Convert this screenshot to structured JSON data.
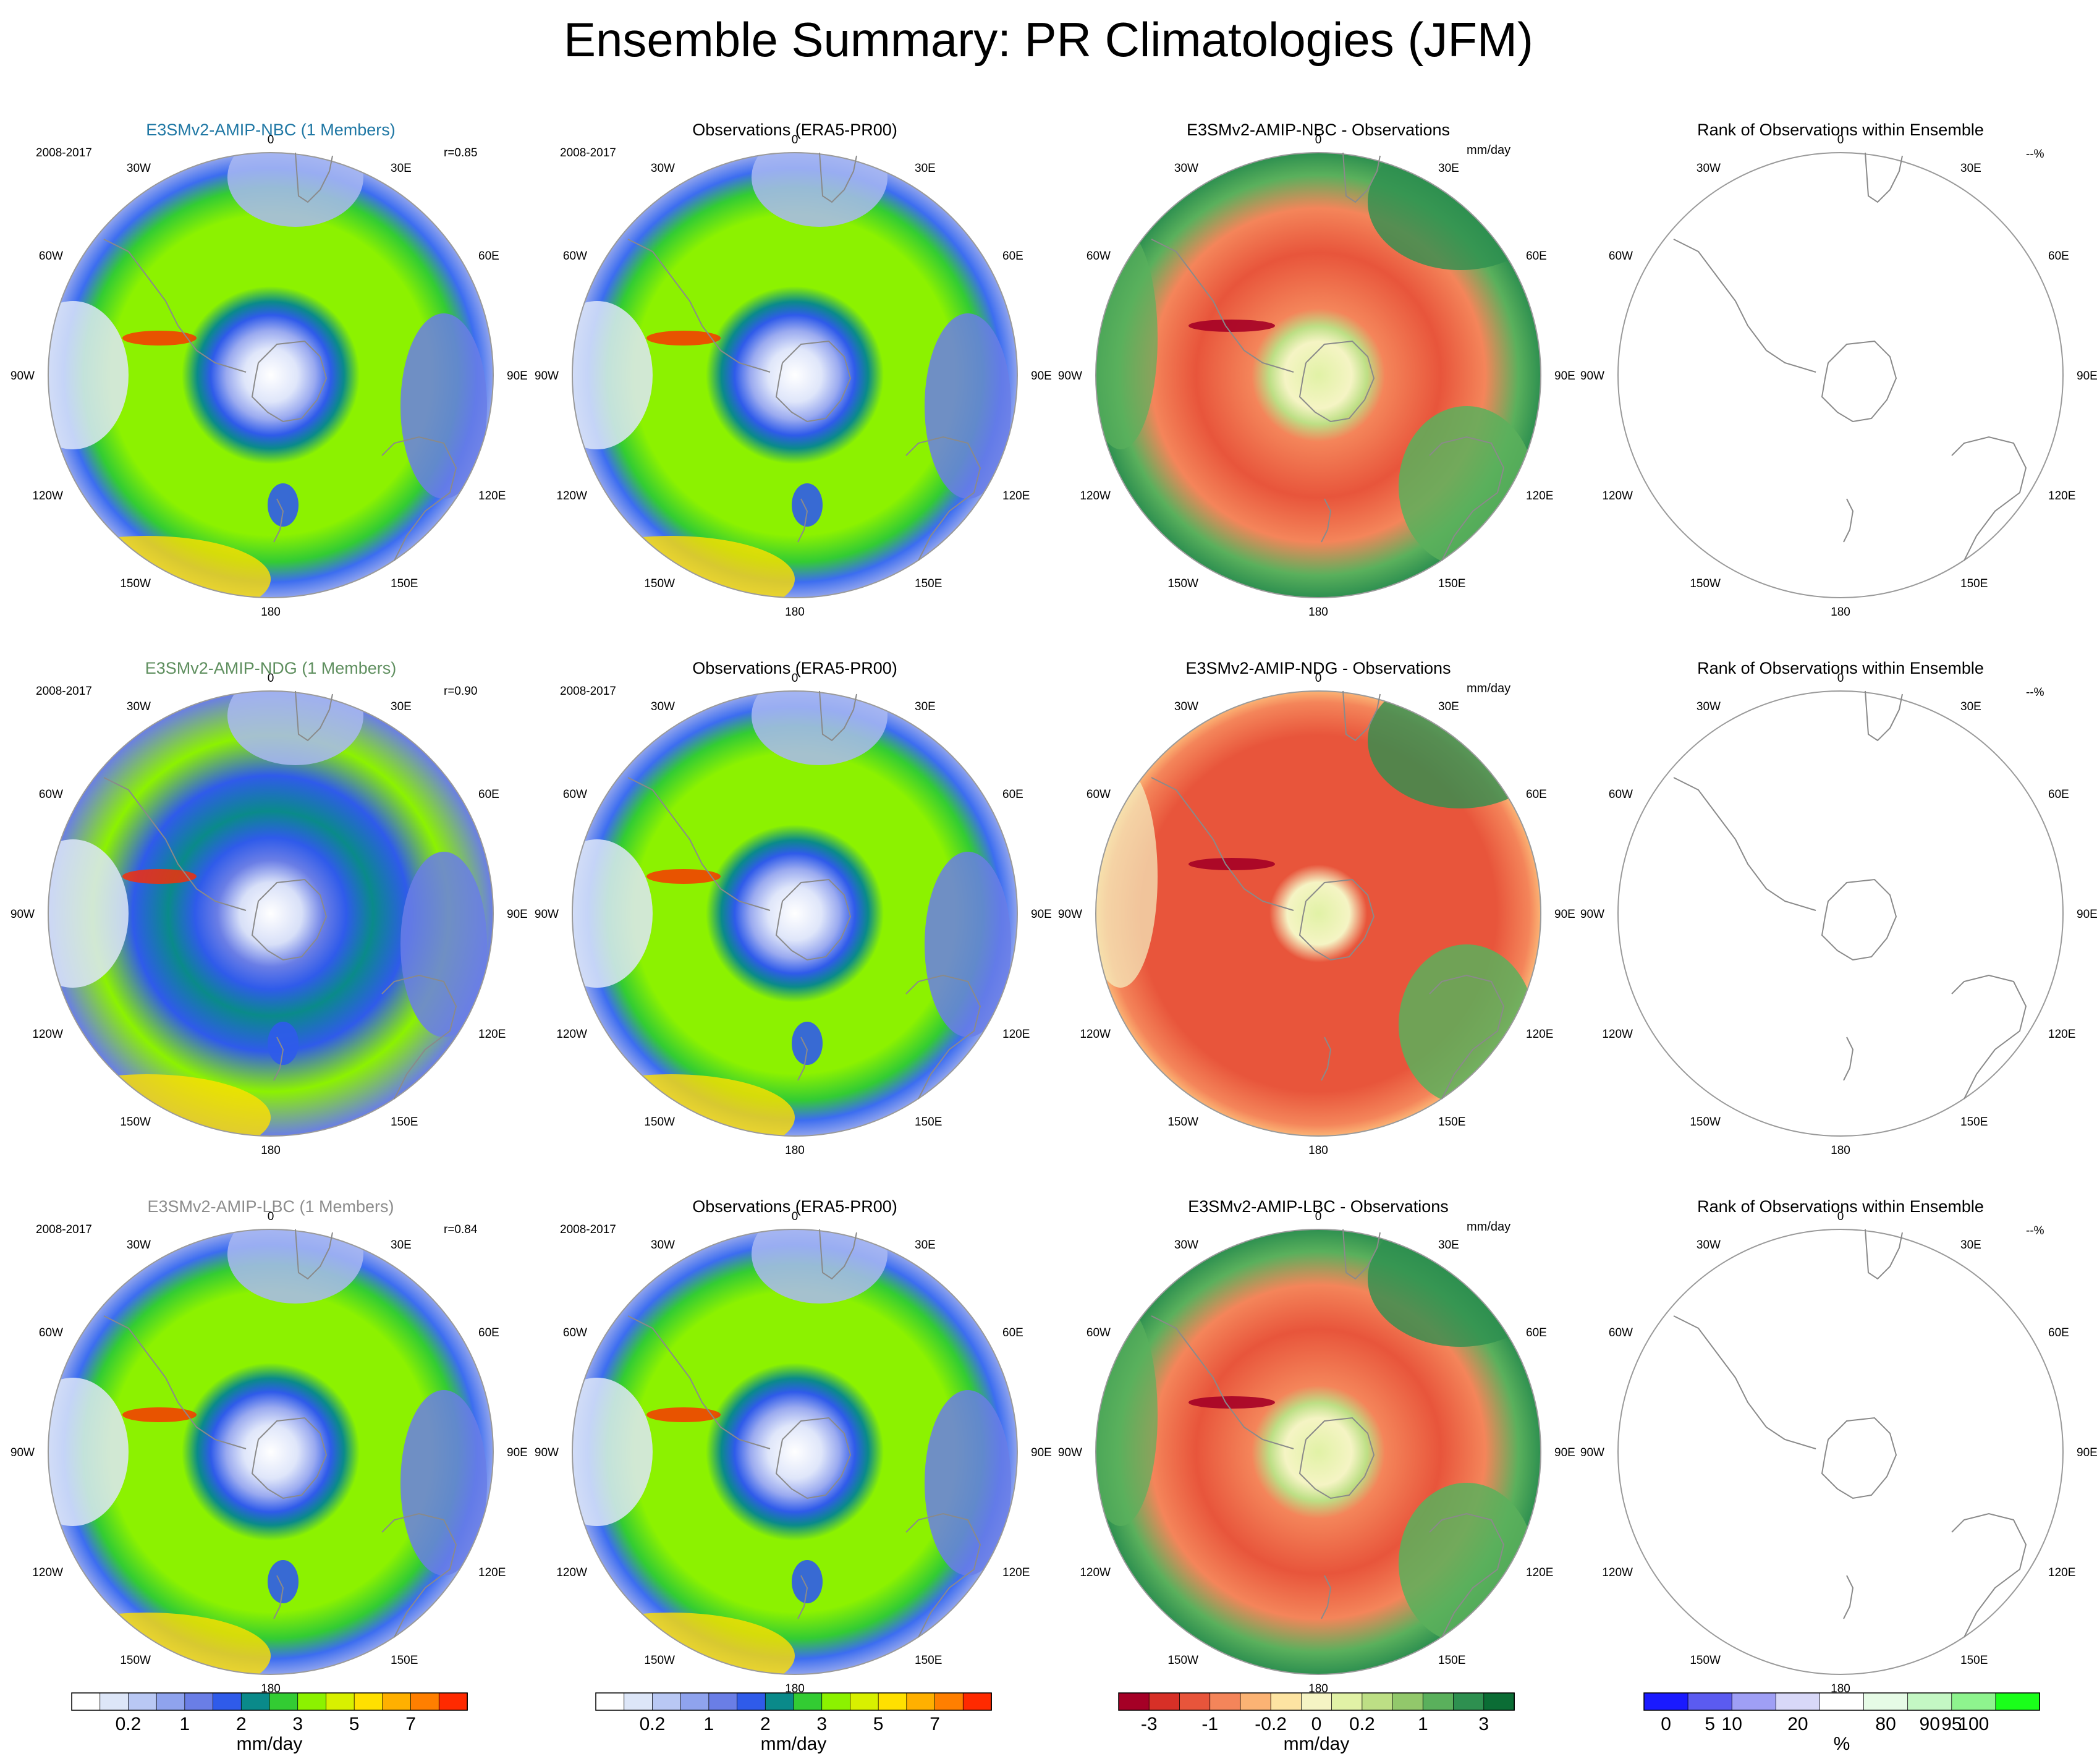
{
  "title": "Ensemble Summary: PR Climatologies (JFM)",
  "colors": {
    "model_label_colors": [
      "#1f77a4",
      "#5f8f5f",
      "#8c8c8c"
    ],
    "circle_edge": "#9a9a9a",
    "coast": "#8a8a8a"
  },
  "chart_data": {
    "type": "polar-map-panel-grid",
    "rows": [
      {
        "model": "E3SMv2-AMIP-NBC (1 Members)",
        "model_color": "#1f77a4",
        "correlation": "r=0.85",
        "observations_title": "Observations (ERA5-PR00)",
        "difference_title": "E3SMv2-AMIP-NBC - Observations",
        "rank_title": "Rank of Observations within Ensemble"
      },
      {
        "model": "E3SMv2-AMIP-NDG (1 Members)",
        "model_color": "#5f8f5f",
        "correlation": "r=0.90",
        "observations_title": "Observations (ERA5-PR00)",
        "difference_title": "E3SMv2-AMIP-NDG - Observations",
        "rank_title": "Rank of Observations within Ensemble"
      },
      {
        "model": "E3SMv2-AMIP-LBC (1 Members)",
        "model_color": "#8c8c8c",
        "correlation": "r=0.84",
        "observations_title": "Observations (ERA5-PR00)",
        "difference_title": "E3SMv2-AMIP-LBC - Observations",
        "rank_title": "Rank of Observations within Ensemble"
      }
    ],
    "period": "2008-2017",
    "difference_units": "mm/day",
    "rank_units_note": "--%",
    "longitude_labels": [
      "0",
      "30E",
      "60E",
      "90E",
      "120E",
      "150E",
      "180",
      "150W",
      "120W",
      "90W",
      "60W",
      "30W"
    ],
    "colorbars": [
      {
        "name": "pr-climatology",
        "units": "mm/day",
        "colors": [
          "#ffffff",
          "#dde6f8",
          "#b9c8f4",
          "#8fa3ee",
          "#6a7ee6",
          "#2f5bea",
          "#0a8a8a",
          "#33cc33",
          "#8cf200",
          "#d8f000",
          "#ffe000",
          "#ffb000",
          "#ff7f00",
          "#ff2a00"
        ],
        "tick_labels": [
          "0.2",
          "1",
          "2",
          "3",
          "5",
          "7"
        ],
        "tick_positions": [
          2,
          4,
          6,
          8,
          10,
          12
        ]
      },
      {
        "name": "pr-climatology-obs",
        "units": "mm/day",
        "colors": [
          "#ffffff",
          "#dde6f8",
          "#b9c8f4",
          "#8fa3ee",
          "#6a7ee6",
          "#2f5bea",
          "#0a8a8a",
          "#33cc33",
          "#8cf200",
          "#d8f000",
          "#ffe000",
          "#ffb000",
          "#ff7f00",
          "#ff2a00"
        ],
        "tick_labels": [
          "0.2",
          "1",
          "2",
          "3",
          "5",
          "7"
        ],
        "tick_positions": [
          2,
          4,
          6,
          8,
          10,
          12
        ]
      },
      {
        "name": "pr-difference",
        "units": "mm/day",
        "colors": [
          "#a50026",
          "#d73027",
          "#e8553b",
          "#f4855a",
          "#fbb374",
          "#fde4a2",
          "#f5f4c4",
          "#e1f2a6",
          "#bddf85",
          "#92c86b",
          "#5ab05c",
          "#2e9050",
          "#0b6d35"
        ],
        "tick_labels": [
          "-3",
          "-1",
          "-0.2",
          "0",
          "0.2",
          "1",
          "3"
        ],
        "tick_positions": [
          1,
          3,
          5,
          6.5,
          8,
          10,
          12
        ]
      },
      {
        "name": "rank-percent",
        "units": "%",
        "colors": [
          "#1a1aff",
          "#5b5bf0",
          "#9f9ff5",
          "#d8d8f8",
          "#ffffff",
          "#e6fbe6",
          "#c4f7c4",
          "#8ef48e",
          "#1aff1a"
        ],
        "tick_labels": [
          "0",
          "5",
          "10",
          "20",
          "80",
          "90",
          "95",
          "100"
        ],
        "tick_positions": [
          0.5,
          1.5,
          2,
          3.5,
          5.5,
          6.5,
          7,
          7.5
        ]
      }
    ]
  }
}
